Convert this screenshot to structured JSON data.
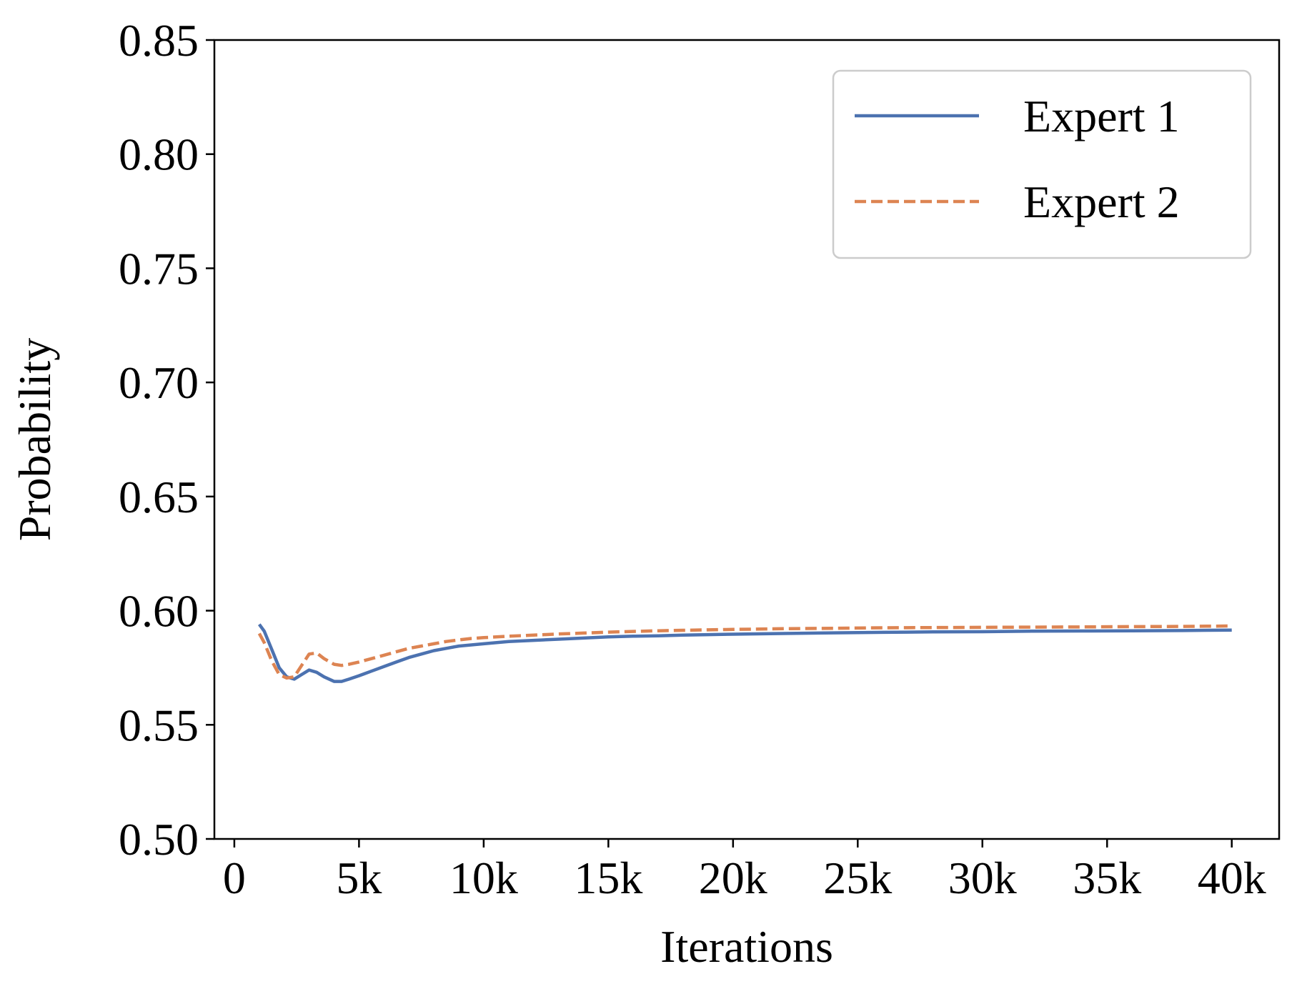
{
  "chart_data": {
    "type": "line",
    "title": "",
    "xlabel": "Iterations",
    "ylabel": "Probability",
    "xlim": [
      -800,
      41900
    ],
    "ylim": [
      0.5,
      0.85
    ],
    "x_ticks": [
      {
        "value": 0,
        "label": "0"
      },
      {
        "value": 5000,
        "label": "5k"
      },
      {
        "value": 10000,
        "label": "10k"
      },
      {
        "value": 15000,
        "label": "15k"
      },
      {
        "value": 20000,
        "label": "20k"
      },
      {
        "value": 25000,
        "label": "25k"
      },
      {
        "value": 30000,
        "label": "30k"
      },
      {
        "value": 35000,
        "label": "35k"
      },
      {
        "value": 40000,
        "label": "40k"
      }
    ],
    "y_ticks": [
      {
        "value": 0.5,
        "label": "0.50"
      },
      {
        "value": 0.55,
        "label": "0.55"
      },
      {
        "value": 0.6,
        "label": "0.60"
      },
      {
        "value": 0.65,
        "label": "0.65"
      },
      {
        "value": 0.7,
        "label": "0.70"
      },
      {
        "value": 0.75,
        "label": "0.75"
      },
      {
        "value": 0.8,
        "label": "0.80"
      },
      {
        "value": 0.85,
        "label": "0.85"
      }
    ],
    "grid": false,
    "legend_position": "top-right",
    "series": [
      {
        "name": "Expert 1",
        "color": "#4c72b0",
        "style": "solid",
        "x": [
          1000,
          1200,
          1500,
          1800,
          2100,
          2400,
          2700,
          3000,
          3300,
          3600,
          4000,
          4300,
          4600,
          5000,
          5500,
          6000,
          6500,
          7000,
          7500,
          8000,
          8500,
          9000,
          9500,
          10000,
          11000,
          12000,
          13000,
          14000,
          15000,
          16000,
          17000,
          18000,
          19000,
          20000,
          22000,
          24000,
          26000,
          28000,
          30000,
          32000,
          34000,
          36000,
          38000,
          39000,
          40000
        ],
        "y": [
          0.594,
          0.591,
          0.583,
          0.575,
          0.571,
          0.57,
          0.572,
          0.574,
          0.573,
          0.571,
          0.569,
          0.569,
          0.57,
          0.5715,
          0.5735,
          0.5755,
          0.5775,
          0.5795,
          0.581,
          0.5825,
          0.5835,
          0.5845,
          0.585,
          0.5855,
          0.5865,
          0.587,
          0.5875,
          0.588,
          0.5885,
          0.5888,
          0.589,
          0.5893,
          0.5895,
          0.5897,
          0.59,
          0.5903,
          0.5905,
          0.5907,
          0.5908,
          0.591,
          0.5911,
          0.5912,
          0.5913,
          0.5914,
          0.5915
        ]
      },
      {
        "name": "Expert 2",
        "color": "#dd8452",
        "style": "dashed",
        "x": [
          1000,
          1200,
          1500,
          1800,
          2100,
          2400,
          2700,
          3000,
          3300,
          3600,
          4000,
          4300,
          4600,
          5000,
          5500,
          6000,
          6500,
          7000,
          7500,
          8000,
          8500,
          9000,
          9500,
          10000,
          11000,
          12000,
          13000,
          14000,
          15000,
          16000,
          17000,
          18000,
          19000,
          20000,
          22000,
          24000,
          26000,
          28000,
          30000,
          32000,
          34000,
          36000,
          38000,
          39000,
          40000
        ],
        "y": [
          0.59,
          0.586,
          0.578,
          0.572,
          0.5705,
          0.571,
          0.576,
          0.581,
          0.5815,
          0.579,
          0.5765,
          0.576,
          0.5765,
          0.5775,
          0.579,
          0.5805,
          0.582,
          0.5835,
          0.5845,
          0.5855,
          0.5865,
          0.5872,
          0.5878,
          0.5882,
          0.5888,
          0.5893,
          0.5898,
          0.5902,
          0.5906,
          0.5909,
          0.5912,
          0.5914,
          0.5916,
          0.5918,
          0.5921,
          0.5923,
          0.5925,
          0.5926,
          0.5927,
          0.5928,
          0.5929,
          0.593,
          0.5931,
          0.5932,
          0.5933
        ]
      }
    ]
  }
}
